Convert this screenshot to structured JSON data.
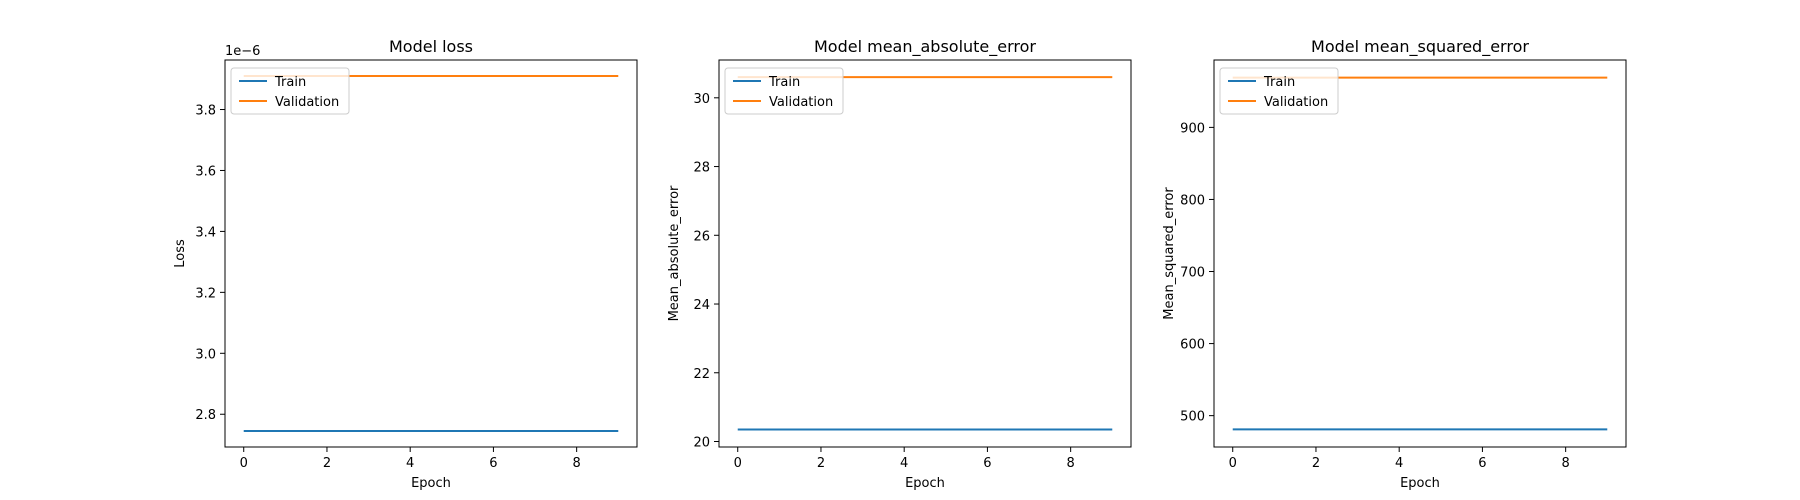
{
  "chart_data": [
    {
      "type": "line",
      "title": "Model loss",
      "xlabel": "Epoch",
      "ylabel": "Loss",
      "offset_label": "1e−6",
      "x": [
        0,
        1,
        2,
        3,
        4,
        5,
        6,
        7,
        8,
        9
      ],
      "xlim": [
        -0.45,
        9.45
      ],
      "ylim": [
        2.6925,
        3.9625
      ],
      "xticks": [
        0,
        2,
        4,
        6,
        8
      ],
      "xtick_labels": [
        "0",
        "2",
        "4",
        "6",
        "8"
      ],
      "yticks": [
        2.8,
        3.0,
        3.2,
        3.4,
        3.6,
        3.8
      ],
      "ytick_labels": [
        "2.8",
        "3.0",
        "3.2",
        "3.4",
        "3.6",
        "3.8"
      ],
      "legend_loc": "upper left",
      "series": [
        {
          "name": "Train",
          "color": "#1f77b4",
          "values": [
            2.745,
            2.745,
            2.745,
            2.745,
            2.745,
            2.745,
            2.745,
            2.745,
            2.745,
            2.745
          ]
        },
        {
          "name": "Validation",
          "color": "#ff7f0e",
          "values": [
            3.91,
            3.91,
            3.91,
            3.91,
            3.91,
            3.91,
            3.91,
            3.91,
            3.91,
            3.91
          ]
        }
      ]
    },
    {
      "type": "line",
      "title": "Model mean_absolute_error",
      "xlabel": "Epoch",
      "ylabel": "Mean_absolute_error",
      "offset_label": "",
      "x": [
        0,
        1,
        2,
        3,
        4,
        5,
        6,
        7,
        8,
        9
      ],
      "xlim": [
        -0.45,
        9.45
      ],
      "ylim": [
        19.84,
        31.1
      ],
      "xticks": [
        0,
        2,
        4,
        6,
        8
      ],
      "xtick_labels": [
        "0",
        "2",
        "4",
        "6",
        "8"
      ],
      "yticks": [
        20,
        22,
        24,
        26,
        28,
        30
      ],
      "ytick_labels": [
        "20",
        "22",
        "24",
        "26",
        "28",
        "30"
      ],
      "legend_loc": "upper left",
      "series": [
        {
          "name": "Train",
          "color": "#1f77b4",
          "values": [
            20.35,
            20.35,
            20.35,
            20.35,
            20.35,
            20.35,
            20.35,
            20.35,
            20.35,
            20.35
          ]
        },
        {
          "name": "Validation",
          "color": "#ff7f0e",
          "values": [
            30.6,
            30.6,
            30.6,
            30.6,
            30.6,
            30.6,
            30.6,
            30.6,
            30.6,
            30.6
          ]
        }
      ]
    },
    {
      "type": "line",
      "title": "Model mean_squared_error",
      "xlabel": "Epoch",
      "ylabel": "Mean_squared_error",
      "offset_label": "",
      "x": [
        0,
        1,
        2,
        3,
        4,
        5,
        6,
        7,
        8,
        9
      ],
      "xlim": [
        -0.45,
        9.45
      ],
      "ylim": [
        456.5,
        993.5
      ],
      "xticks": [
        0,
        2,
        4,
        6,
        8
      ],
      "xtick_labels": [
        "0",
        "2",
        "4",
        "6",
        "8"
      ],
      "yticks": [
        500,
        600,
        700,
        800,
        900
      ],
      "ytick_labels": [
        "500",
        "600",
        "700",
        "800",
        "900"
      ],
      "legend_loc": "upper left",
      "series": [
        {
          "name": "Train",
          "color": "#1f77b4",
          "values": [
            481,
            481,
            481,
            481,
            481,
            481,
            481,
            481,
            481,
            481
          ]
        },
        {
          "name": "Validation",
          "color": "#ff7f0e",
          "values": [
            969,
            969,
            969,
            969,
            969,
            969,
            969,
            969,
            969,
            969
          ]
        }
      ]
    }
  ]
}
